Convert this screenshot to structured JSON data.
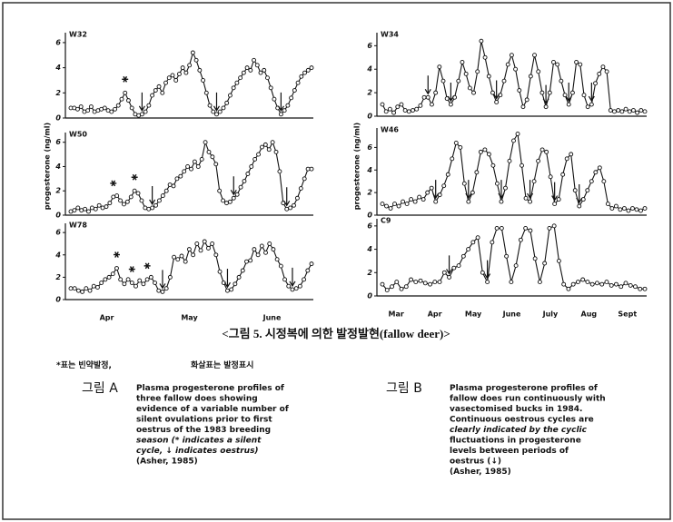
{
  "chart_data": [
    {
      "type": "line",
      "label": "W32",
      "ylim": [
        0,
        6.5
      ],
      "yticks": [
        0,
        2,
        4,
        6
      ],
      "values": [
        0.8,
        0.8,
        0.7,
        0.9,
        0.5,
        0.6,
        0.9,
        0.5,
        0.6,
        0.7,
        0.8,
        0.6,
        0.5,
        0.7,
        1.0,
        1.5,
        2.0,
        1.4,
        0.8,
        0.3,
        0.2,
        0.3,
        0.5,
        1.0,
        1.8,
        2.2,
        2.5,
        2.0,
        2.8,
        3.2,
        3.4,
        3.0,
        3.5,
        4.0,
        3.6,
        4.2,
        5.2,
        4.6,
        3.8,
        3.0,
        2.0,
        1.0,
        0.5,
        0.3,
        0.5,
        0.8,
        1.2,
        1.8,
        2.4,
        2.8,
        3.2,
        3.6,
        4.0,
        3.8,
        4.6,
        4.2,
        3.6,
        3.8,
        3.2,
        2.4,
        1.5,
        0.8,
        0.3,
        0.6,
        1.0,
        1.6,
        2.2,
        2.8,
        3.3,
        3.6,
        3.8,
        4.0
      ],
      "stars": [
        16
      ],
      "arrows": [
        21,
        43,
        62
      ]
    },
    {
      "type": "line",
      "label": "W50",
      "ylim": [
        0,
        6.5
      ],
      "yticks": [
        0,
        2,
        4,
        6
      ],
      "values": [
        0.3,
        0.4,
        0.6,
        0.4,
        0.5,
        0.3,
        0.6,
        0.5,
        0.8,
        0.6,
        0.7,
        1.0,
        1.5,
        1.6,
        1.2,
        0.9,
        1.1,
        1.5,
        2.0,
        1.8,
        1.2,
        0.6,
        0.5,
        0.6,
        0.8,
        1.2,
        1.6,
        2.0,
        2.5,
        2.4,
        3.0,
        3.2,
        3.6,
        4.0,
        3.8,
        4.4,
        4.0,
        4.6,
        6.0,
        5.2,
        4.8,
        4.2,
        2.0,
        1.2,
        1.0,
        1.1,
        1.4,
        1.7,
        2.3,
        2.8,
        3.4,
        4.0,
        4.6,
        5.0,
        5.6,
        5.8,
        5.4,
        6.0,
        5.2,
        3.6,
        1.0,
        0.5,
        0.6,
        0.8,
        1.4,
        2.2,
        3.0,
        3.8,
        3.8
      ],
      "stars": [
        12,
        18
      ],
      "arrows": [
        23,
        46,
        61
      ]
    },
    {
      "type": "line",
      "label": "W78",
      "ylim": [
        0,
        6.5
      ],
      "yticks": [
        0,
        2,
        4,
        6
      ],
      "x_labels": [
        "Apr",
        "May",
        "June"
      ],
      "values": [
        1.0,
        1.0,
        0.8,
        0.7,
        1.0,
        0.8,
        1.2,
        1.1,
        1.5,
        1.8,
        2.0,
        2.3,
        2.8,
        1.8,
        1.4,
        1.8,
        1.5,
        1.2,
        1.7,
        1.4,
        1.8,
        2.0,
        1.5,
        0.8,
        0.7,
        1.0,
        2.0,
        3.8,
        3.6,
        3.9,
        3.4,
        4.5,
        4.0,
        5.0,
        4.4,
        5.2,
        4.6,
        5.0,
        4.0,
        2.5,
        1.5,
        0.8,
        0.9,
        1.4,
        2.0,
        2.6,
        3.4,
        3.5,
        4.5,
        4.0,
        4.8,
        4.2,
        5.0,
        4.5,
        3.6,
        3.0,
        1.8,
        1.2,
        0.9,
        1.0,
        1.2,
        1.8,
        2.6,
        3.2
      ],
      "stars": [
        12,
        16,
        20
      ],
      "arrows": [
        24,
        41,
        58
      ]
    },
    {
      "type": "line",
      "label": "W34",
      "ylim": [
        0,
        6.8
      ],
      "yticks": [
        0,
        2,
        4,
        6
      ],
      "values": [
        1.0,
        0.4,
        0.6,
        0.3,
        0.8,
        1.0,
        0.5,
        0.4,
        0.5,
        0.6,
        0.9,
        1.6,
        1.6,
        1.0,
        2.0,
        4.2,
        3.0,
        1.5,
        1.0,
        1.6,
        3.0,
        4.6,
        3.6,
        2.4,
        2.0,
        3.8,
        6.4,
        5.0,
        3.4,
        2.0,
        1.2,
        1.8,
        3.0,
        4.4,
        5.2,
        4.0,
        2.2,
        0.8,
        1.4,
        3.4,
        5.2,
        3.8,
        2.0,
        0.8,
        2.0,
        4.6,
        4.4,
        3.0,
        1.8,
        1.0,
        2.0,
        4.6,
        4.4,
        1.8,
        0.8,
        1.0,
        2.8,
        3.6,
        4.2,
        3.8,
        0.5,
        0.4,
        0.5,
        0.4,
        0.6,
        0.4,
        0.5,
        0.3,
        0.5,
        0.4
      ],
      "arrows": [
        12,
        18,
        30,
        43,
        49,
        55
      ]
    },
    {
      "type": "line",
      "label": "W46",
      "ylim": [
        0,
        7.4
      ],
      "yticks": [
        0,
        2,
        4,
        6
      ],
      "ylabel": "progesterone (ng/ml)",
      "values": [
        1.0,
        0.8,
        0.6,
        1.0,
        0.8,
        1.2,
        1.0,
        1.4,
        1.2,
        1.6,
        1.4,
        2.0,
        2.4,
        1.2,
        1.8,
        2.6,
        3.6,
        5.0,
        6.4,
        6.0,
        2.8,
        1.2,
        2.0,
        3.8,
        5.6,
        5.8,
        5.4,
        4.4,
        2.8,
        1.2,
        2.4,
        4.8,
        6.6,
        7.2,
        4.4,
        1.5,
        1.2,
        3.0,
        4.8,
        5.8,
        5.6,
        3.4,
        1.0,
        1.4,
        3.6,
        5.0,
        5.4,
        2.2,
        0.8,
        1.4,
        2.2,
        3.0,
        3.8,
        4.2,
        3.0,
        1.0,
        0.6,
        0.8,
        0.5,
        0.6,
        0.4,
        0.6,
        0.5,
        0.4,
        0.6
      ],
      "arrows": [
        13,
        21,
        29,
        36,
        42,
        48
      ]
    },
    {
      "type": "line",
      "label": "C9",
      "ylim": [
        0,
        6.3
      ],
      "yticks": [
        0,
        2,
        4,
        6
      ],
      "x_labels": [
        "Mar",
        "Apr",
        "May",
        "June",
        "July",
        "Aug",
        "Sept"
      ],
      "values": [
        1.0,
        0.5,
        0.8,
        1.2,
        0.6,
        0.8,
        1.4,
        1.2,
        1.3,
        1.1,
        1.0,
        1.2,
        1.2,
        2.0,
        1.6,
        2.4,
        2.6,
        3.4,
        4.0,
        4.6,
        5.0,
        2.0,
        1.2,
        4.6,
        5.8,
        5.8,
        3.4,
        1.2,
        2.6,
        4.8,
        5.8,
        5.6,
        3.2,
        1.2,
        2.8,
        5.8,
        6.0,
        3.0,
        1.0,
        0.6,
        1.0,
        1.2,
        1.4,
        1.2,
        1.0,
        1.1,
        1.0,
        1.2,
        0.9,
        1.0,
        0.8,
        1.1,
        0.9,
        0.8,
        0.6,
        0.6
      ],
      "arrows": [
        14,
        22
      ]
    }
  ],
  "left_ylabel": "progesterone (ng/ml)",
  "title": "<그림 5. 시정복에 의한 발정발현(fallow deer)>",
  "note": [
    "*표는 빈약발정,",
    "화살표는 발정표시"
  ],
  "caption_a": {
    "label": "그림 A",
    "lines": [
      "Plasma progesterone profiles of",
      "three fallow does showing",
      "evidence of a variable number of",
      "silent ovulations prior to first",
      "oestrus of the 1983 breeding",
      "season (* indicates a silent",
      "cycle, ↓ indicates oestrus)",
      "(Asher, 1985)"
    ]
  },
  "caption_b": {
    "label": "그림 B",
    "lines": [
      "Plasma progesterone profiles of",
      "fallow does run continuously with",
      "vasectomised bucks in 1984.",
      "Continuous oestrous cycles are",
      "clearly indicated by the cyclic",
      "fluctuations in progesterone",
      "levels between periods of",
      "oestrus (↓)",
      "(Asher, 1985)"
    ]
  }
}
